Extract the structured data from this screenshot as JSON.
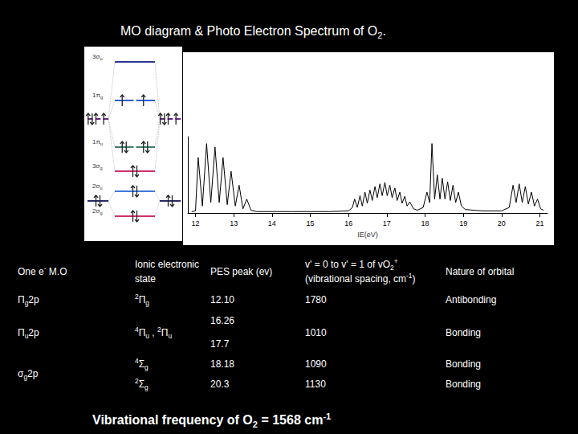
{
  "title": [
    "MO diagram  & Photo Electron Spectrum of O",
    {
      "sub": "2"
    },
    "."
  ],
  "mo_diagram": {
    "levels": [
      {
        "label": [
          "3σ",
          {
            "sub": "u"
          }
        ],
        "color": "#2b3a8f",
        "electrons": 0,
        "degenerate": false
      },
      {
        "label": [
          "1π",
          {
            "sub": "g"
          }
        ],
        "color": "#2f5fd0",
        "electrons": 2,
        "degenerate": true
      },
      {
        "label": [
          "1π",
          {
            "sub": "u"
          }
        ],
        "color": "#3f7f6a",
        "electrons": 4,
        "degenerate": true
      },
      {
        "label": [
          "3σ",
          {
            "sub": "g"
          }
        ],
        "color": "#d0306a",
        "electrons": 2,
        "degenerate": false
      },
      {
        "label": [
          "2σ",
          {
            "sub": "u"
          }
        ],
        "color": "#3d7ad8",
        "electrons": 2,
        "degenerate": false
      },
      {
        "label": [
          "2σ",
          {
            "sub": "g"
          }
        ],
        "color": "#d0306a",
        "electrons": 2,
        "degenerate": false
      }
    ],
    "atomic": [
      {
        "electrons": 4,
        "color": "#6a2a8a",
        "degenerate": true
      },
      {
        "electrons": 2,
        "color": "#2a2a6a",
        "degenerate": false
      }
    ]
  },
  "chart_data": {
    "type": "line",
    "xlabel": "IE(eV)",
    "color": "#000000",
    "grid": false,
    "tick_labels": "x",
    "xlim": [
      11.8,
      21.2
    ],
    "xticks": [
      12,
      13,
      14,
      15,
      16,
      17,
      18,
      19,
      20,
      21
    ],
    "ylim": [
      0,
      1.1
    ],
    "x": [
      11.9,
      12.0,
      12.07,
      12.18,
      12.29,
      12.4,
      12.51,
      12.62,
      12.72,
      12.83,
      12.93,
      13.04,
      13.14,
      13.24,
      13.34,
      13.45,
      13.6,
      14.5,
      15.5,
      16.0,
      16.1,
      16.16,
      16.23,
      16.3,
      16.36,
      16.43,
      16.49,
      16.56,
      16.62,
      16.69,
      16.75,
      16.82,
      16.88,
      16.95,
      17.01,
      17.08,
      17.14,
      17.21,
      17.27,
      17.34,
      17.4,
      17.47,
      17.53,
      17.6,
      17.7,
      17.8,
      17.95,
      18.05,
      18.12,
      18.18,
      18.25,
      18.32,
      18.39,
      18.45,
      18.52,
      18.59,
      18.66,
      18.73,
      18.8,
      18.87,
      18.95,
      19.05,
      19.5,
      20.0,
      20.2,
      20.3,
      20.38,
      20.46,
      20.54,
      20.62,
      20.7,
      20.78,
      20.86,
      20.94,
      21.02,
      21.1
    ],
    "values": [
      0.02,
      0.03,
      0.8,
      0.1,
      1.0,
      0.15,
      0.95,
      0.15,
      0.8,
      0.12,
      0.6,
      0.1,
      0.4,
      0.06,
      0.2,
      0.04,
      0.02,
      0.02,
      0.02,
      0.03,
      0.08,
      0.2,
      0.08,
      0.25,
      0.1,
      0.3,
      0.14,
      0.33,
      0.18,
      0.38,
      0.22,
      0.42,
      0.25,
      0.44,
      0.25,
      0.4,
      0.22,
      0.36,
      0.18,
      0.3,
      0.14,
      0.24,
      0.1,
      0.16,
      0.06,
      0.04,
      0.08,
      0.3,
      0.15,
      1.0,
      0.2,
      0.55,
      0.2,
      0.5,
      0.2,
      0.45,
      0.18,
      0.4,
      0.15,
      0.3,
      0.1,
      0.05,
      0.03,
      0.03,
      0.08,
      0.4,
      0.15,
      0.42,
      0.15,
      0.38,
      0.13,
      0.3,
      0.1,
      0.2,
      0.06,
      0.04
    ]
  },
  "table": {
    "header": [
      [
        [
          "One e",
          {
            "sup": "-"
          },
          " M.O"
        ]
      ],
      [
        [
          "Ionic electronic"
        ],
        [
          "state"
        ]
      ],
      [
        [
          "PES peak (ev)"
        ]
      ],
      [
        [
          "v' = 0 to v' = 1 of ",
          "v",
          "O",
          {
            "sub": "2"
          },
          {
            "sup": "+"
          }
        ],
        [
          "(vibrational spacing, cm",
          {
            "sup": "-1"
          },
          ")"
        ]
      ],
      [
        [
          "Nature of orbital"
        ]
      ]
    ],
    "rows": [
      [
        [
          [
            "Π",
            {
              "sub": "g"
            },
            "2p"
          ]
        ],
        [
          [
            {
              "sup": "2"
            },
            "Π",
            {
              "sub": "g"
            }
          ]
        ],
        [
          [
            "12.10"
          ]
        ],
        [
          [
            "1780"
          ]
        ],
        [
          [
            "Antibonding"
          ]
        ]
      ],
      [
        [
          [
            "Π",
            {
              "sub": "u"
            },
            "2p"
          ]
        ],
        [
          [
            {
              "sup": "4"
            },
            "Π",
            {
              "sub": "u"
            },
            " , ",
            {
              "sup": "2"
            },
            "Π",
            {
              "sub": "u"
            }
          ]
        ],
        [
          [
            "16.26"
          ],
          [
            "17.7"
          ]
        ],
        [
          [
            "1010"
          ]
        ],
        [
          [
            "Bonding"
          ]
        ]
      ],
      [
        [
          [
            "σ",
            {
              "sub": "g"
            },
            "2p"
          ]
        ],
        [
          [
            {
              "sup": "4"
            },
            "Σ",
            {
              "sub": "g"
            }
          ],
          [
            {
              "sup": "2"
            },
            "Σ",
            {
              "sub": "g"
            }
          ]
        ],
        [
          [
            "18.18"
          ],
          [
            "20.3"
          ]
        ],
        [
          [
            "1090"
          ],
          [
            "1130"
          ]
        ],
        [
          [
            "Bonding"
          ],
          [
            "Bonding"
          ]
        ]
      ]
    ]
  },
  "footer": [
    "Vibrational frequency of O",
    {
      "sub": "2"
    },
    " = 1568 cm",
    {
      "sup": "-1"
    }
  ]
}
